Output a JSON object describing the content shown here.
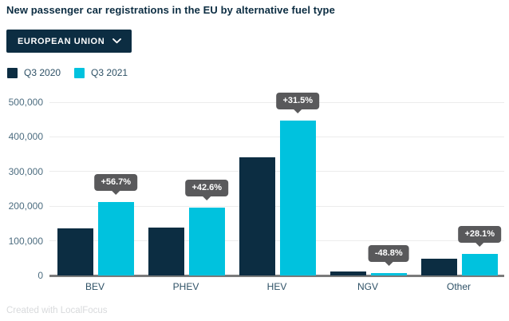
{
  "title": "New passenger car registrations in the EU by alternative fuel type",
  "region_selector": {
    "label": "EUROPEAN UNION"
  },
  "legend": [
    {
      "label": "Q3 2020",
      "color": "#0c2d42"
    },
    {
      "label": "Q3 2021",
      "color": "#00c2de"
    }
  ],
  "colors": {
    "navy": "#0c2d42",
    "cyan": "#00c2de",
    "badge_bg": "#59595b",
    "gridline": "#ececec",
    "axis_line": "#7b7b7b"
  },
  "chart_data": {
    "type": "bar",
    "title": "New passenger car registrations in the EU by alternative fuel type",
    "categories": [
      "BEV",
      "PHEV",
      "HEV",
      "NGV",
      "Other"
    ],
    "series": [
      {
        "name": "Q3 2020",
        "color": "#0c2d42",
        "values": [
          136000,
          138000,
          340000,
          12000,
          49000
        ]
      },
      {
        "name": "Q3 2021",
        "color": "#00c2de",
        "values": [
          213000,
          197000,
          447000,
          6100,
          62800
        ]
      }
    ],
    "change_labels": [
      "+56.7%",
      "+42.6%",
      "+31.5%",
      "-48.8%",
      "+28.1%"
    ],
    "xlabel": "",
    "ylabel": "",
    "ylim": [
      0,
      500000
    ],
    "ytick_step": 100000,
    "ytick_labels": [
      "0",
      "100,000",
      "200,000",
      "300,000",
      "400,000",
      "500,000"
    ],
    "grid": true,
    "legend_position": "top-left"
  },
  "footer": {
    "credit": "Created with LocalFocus"
  }
}
